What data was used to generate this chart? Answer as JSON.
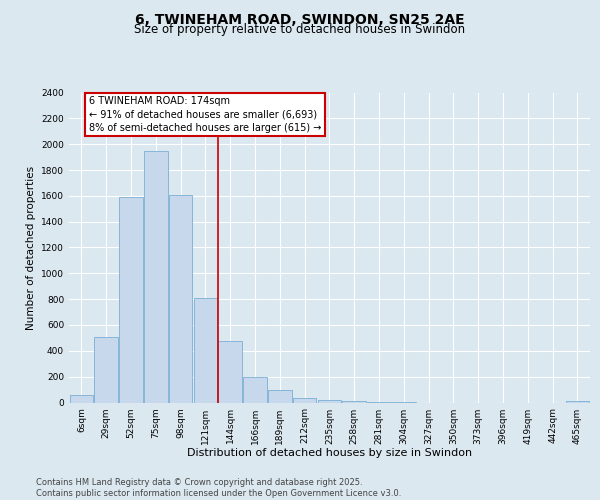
{
  "title": "6, TWINEHAM ROAD, SWINDON, SN25 2AE",
  "subtitle": "Size of property relative to detached houses in Swindon",
  "xlabel": "Distribution of detached houses by size in Swindon",
  "ylabel": "Number of detached properties",
  "bar_color": "#c8d8ec",
  "bar_edge_color": "#7aafd4",
  "background_color": "#dce8f0",
  "grid_color": "#ffffff",
  "categories": [
    "6sqm",
    "29sqm",
    "52sqm",
    "75sqm",
    "98sqm",
    "121sqm",
    "144sqm",
    "166sqm",
    "189sqm",
    "212sqm",
    "235sqm",
    "258sqm",
    "281sqm",
    "304sqm",
    "327sqm",
    "350sqm",
    "373sqm",
    "396sqm",
    "419sqm",
    "442sqm",
    "465sqm"
  ],
  "values": [
    55,
    510,
    1590,
    1950,
    1610,
    810,
    480,
    195,
    95,
    35,
    18,
    8,
    2,
    1,
    0,
    0,
    0,
    0,
    0,
    0,
    10
  ],
  "ylim": [
    0,
    2400
  ],
  "yticks": [
    0,
    200,
    400,
    600,
    800,
    1000,
    1200,
    1400,
    1600,
    1800,
    2000,
    2200,
    2400
  ],
  "vline_x_idx": 5.5,
  "annotation_text": "6 TWINEHAM ROAD: 174sqm\n← 91% of detached houses are smaller (6,693)\n8% of semi-detached houses are larger (615) →",
  "annotation_box_facecolor": "#ffffff",
  "annotation_box_edgecolor": "#cc0000",
  "footer_text": "Contains HM Land Registry data © Crown copyright and database right 2025.\nContains public sector information licensed under the Open Government Licence v3.0.",
  "vline_color": "#cc0000",
  "title_fontsize": 10,
  "subtitle_fontsize": 8.5,
  "ylabel_fontsize": 7.5,
  "xlabel_fontsize": 8,
  "tick_fontsize": 6.5,
  "annotation_fontsize": 7,
  "footer_fontsize": 6
}
